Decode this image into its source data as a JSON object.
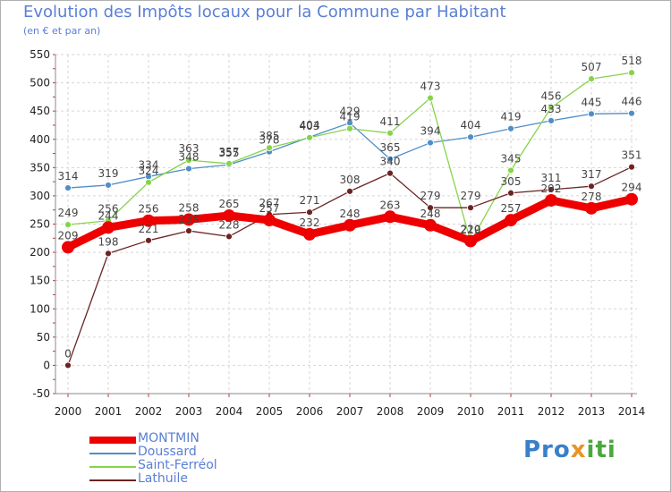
{
  "chart_data": {
    "type": "line",
    "title": "Evolution des Impôts locaux pour la Commune par Habitant",
    "subtitle": "(en € et par an)",
    "x": [
      "2000",
      "2001",
      "2002",
      "2003",
      "2004",
      "2005",
      "2006",
      "2007",
      "2008",
      "2009",
      "2010",
      "2011",
      "2012",
      "2013",
      "2014"
    ],
    "ylim": [
      -50,
      550
    ],
    "yticks": [
      -50,
      0,
      50,
      100,
      150,
      200,
      250,
      300,
      350,
      400,
      450,
      500,
      550
    ],
    "grid": true,
    "legend_position": "bottom-left",
    "series": [
      {
        "name": "MONTMIN",
        "color": "#ee0000",
        "values": [
          209,
          244,
          256,
          258,
          265,
          257,
          232,
          248,
          263,
          248,
          220,
          257,
          292,
          278,
          294
        ]
      },
      {
        "name": "Doussard",
        "color": "#4f8fc8",
        "values": [
          314,
          319,
          334,
          348,
          355,
          378,
          404,
          429,
          365,
          394,
          404,
          419,
          433,
          445,
          446
        ]
      },
      {
        "name": "Saint-Ferréol",
        "color": "#86d44a",
        "values": [
          249,
          256,
          324,
          363,
          357,
          385,
          403,
          419,
          411,
          473,
          219,
          345,
          456,
          507,
          518
        ]
      },
      {
        "name": "Lathuile",
        "color": "#6b2323",
        "values": [
          0,
          198,
          221,
          238,
          228,
          267,
          271,
          308,
          340,
          279,
          279,
          305,
          311,
          317,
          351
        ]
      }
    ]
  },
  "logo": {
    "p1": "Pro",
    "p2": "x",
    "p3": "iti"
  }
}
